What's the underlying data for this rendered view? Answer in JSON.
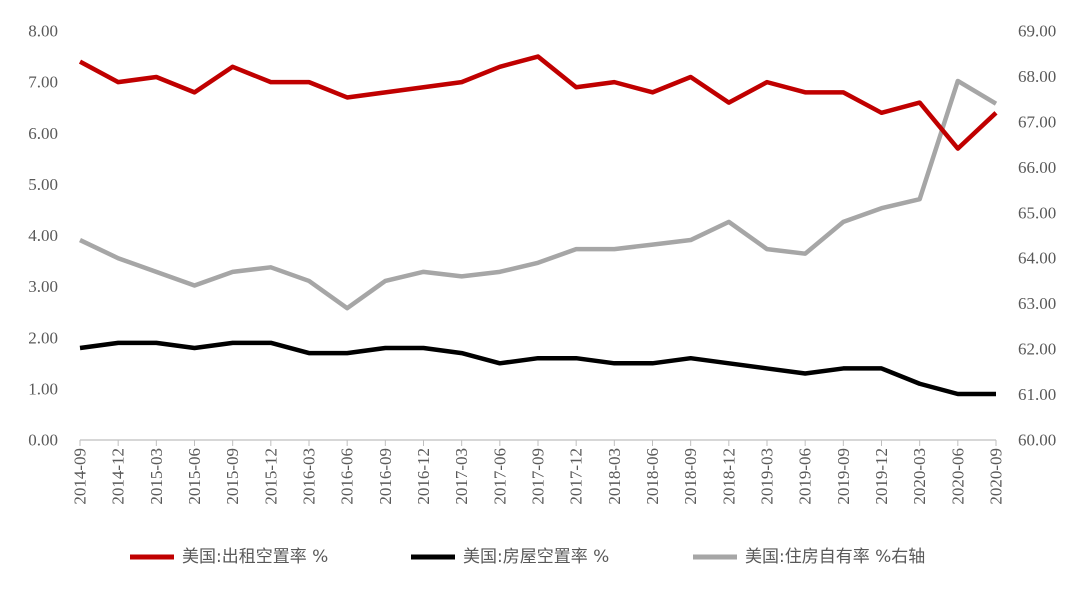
{
  "colors": {
    "rental_vacancy": "#c00000",
    "homeowner_vacancy": "#000000",
    "homeownership": "#a6a6a6",
    "axis": "#bfbfbf",
    "tick_text": "#595959"
  },
  "chart_data": {
    "type": "line",
    "categories": [
      "2014-09",
      "2014-12",
      "2015-03",
      "2015-06",
      "2015-09",
      "2015-12",
      "2016-03",
      "2016-06",
      "2016-09",
      "2016-12",
      "2017-03",
      "2017-06",
      "2017-09",
      "2017-12",
      "2018-03",
      "2018-06",
      "2018-09",
      "2018-12",
      "2019-03",
      "2019-06",
      "2019-09",
      "2019-12",
      "2020-03",
      "2020-06",
      "2020-09"
    ],
    "y_left": {
      "ylim": [
        0,
        8
      ],
      "ticks": [
        "0.00",
        "1.00",
        "2.00",
        "3.00",
        "4.00",
        "5.00",
        "6.00",
        "7.00",
        "8.00"
      ]
    },
    "y_right": {
      "ylim": [
        60,
        69
      ],
      "ticks": [
        "60.00",
        "61.00",
        "62.00",
        "63.00",
        "64.00",
        "65.00",
        "66.00",
        "67.00",
        "68.00",
        "69.00"
      ]
    },
    "series": [
      {
        "name": "美国:出租空置率 %",
        "axis": "left",
        "values": [
          7.4,
          7.0,
          7.1,
          6.8,
          7.3,
          7.0,
          7.0,
          6.7,
          6.8,
          6.9,
          7.0,
          7.3,
          7.5,
          6.9,
          7.0,
          6.8,
          7.1,
          6.6,
          7.0,
          6.8,
          6.8,
          6.4,
          6.6,
          5.7,
          6.4
        ]
      },
      {
        "name": "美国:房屋空置率 %",
        "axis": "left",
        "values": [
          1.8,
          1.9,
          1.9,
          1.8,
          1.9,
          1.9,
          1.7,
          1.7,
          1.8,
          1.8,
          1.7,
          1.5,
          1.6,
          1.6,
          1.5,
          1.5,
          1.6,
          1.5,
          1.4,
          1.3,
          1.4,
          1.4,
          1.1,
          0.9,
          0.9
        ]
      },
      {
        "name": "美国:住房自有率 %右轴",
        "axis": "right",
        "values": [
          64.4,
          64.0,
          63.7,
          63.4,
          63.7,
          63.8,
          63.5,
          62.9,
          63.5,
          63.7,
          63.6,
          63.7,
          63.9,
          64.2,
          64.2,
          64.3,
          64.4,
          64.8,
          64.2,
          64.1,
          64.8,
          65.1,
          65.3,
          67.9,
          67.4
        ]
      }
    ],
    "grid": false,
    "legend_position": "bottom"
  }
}
